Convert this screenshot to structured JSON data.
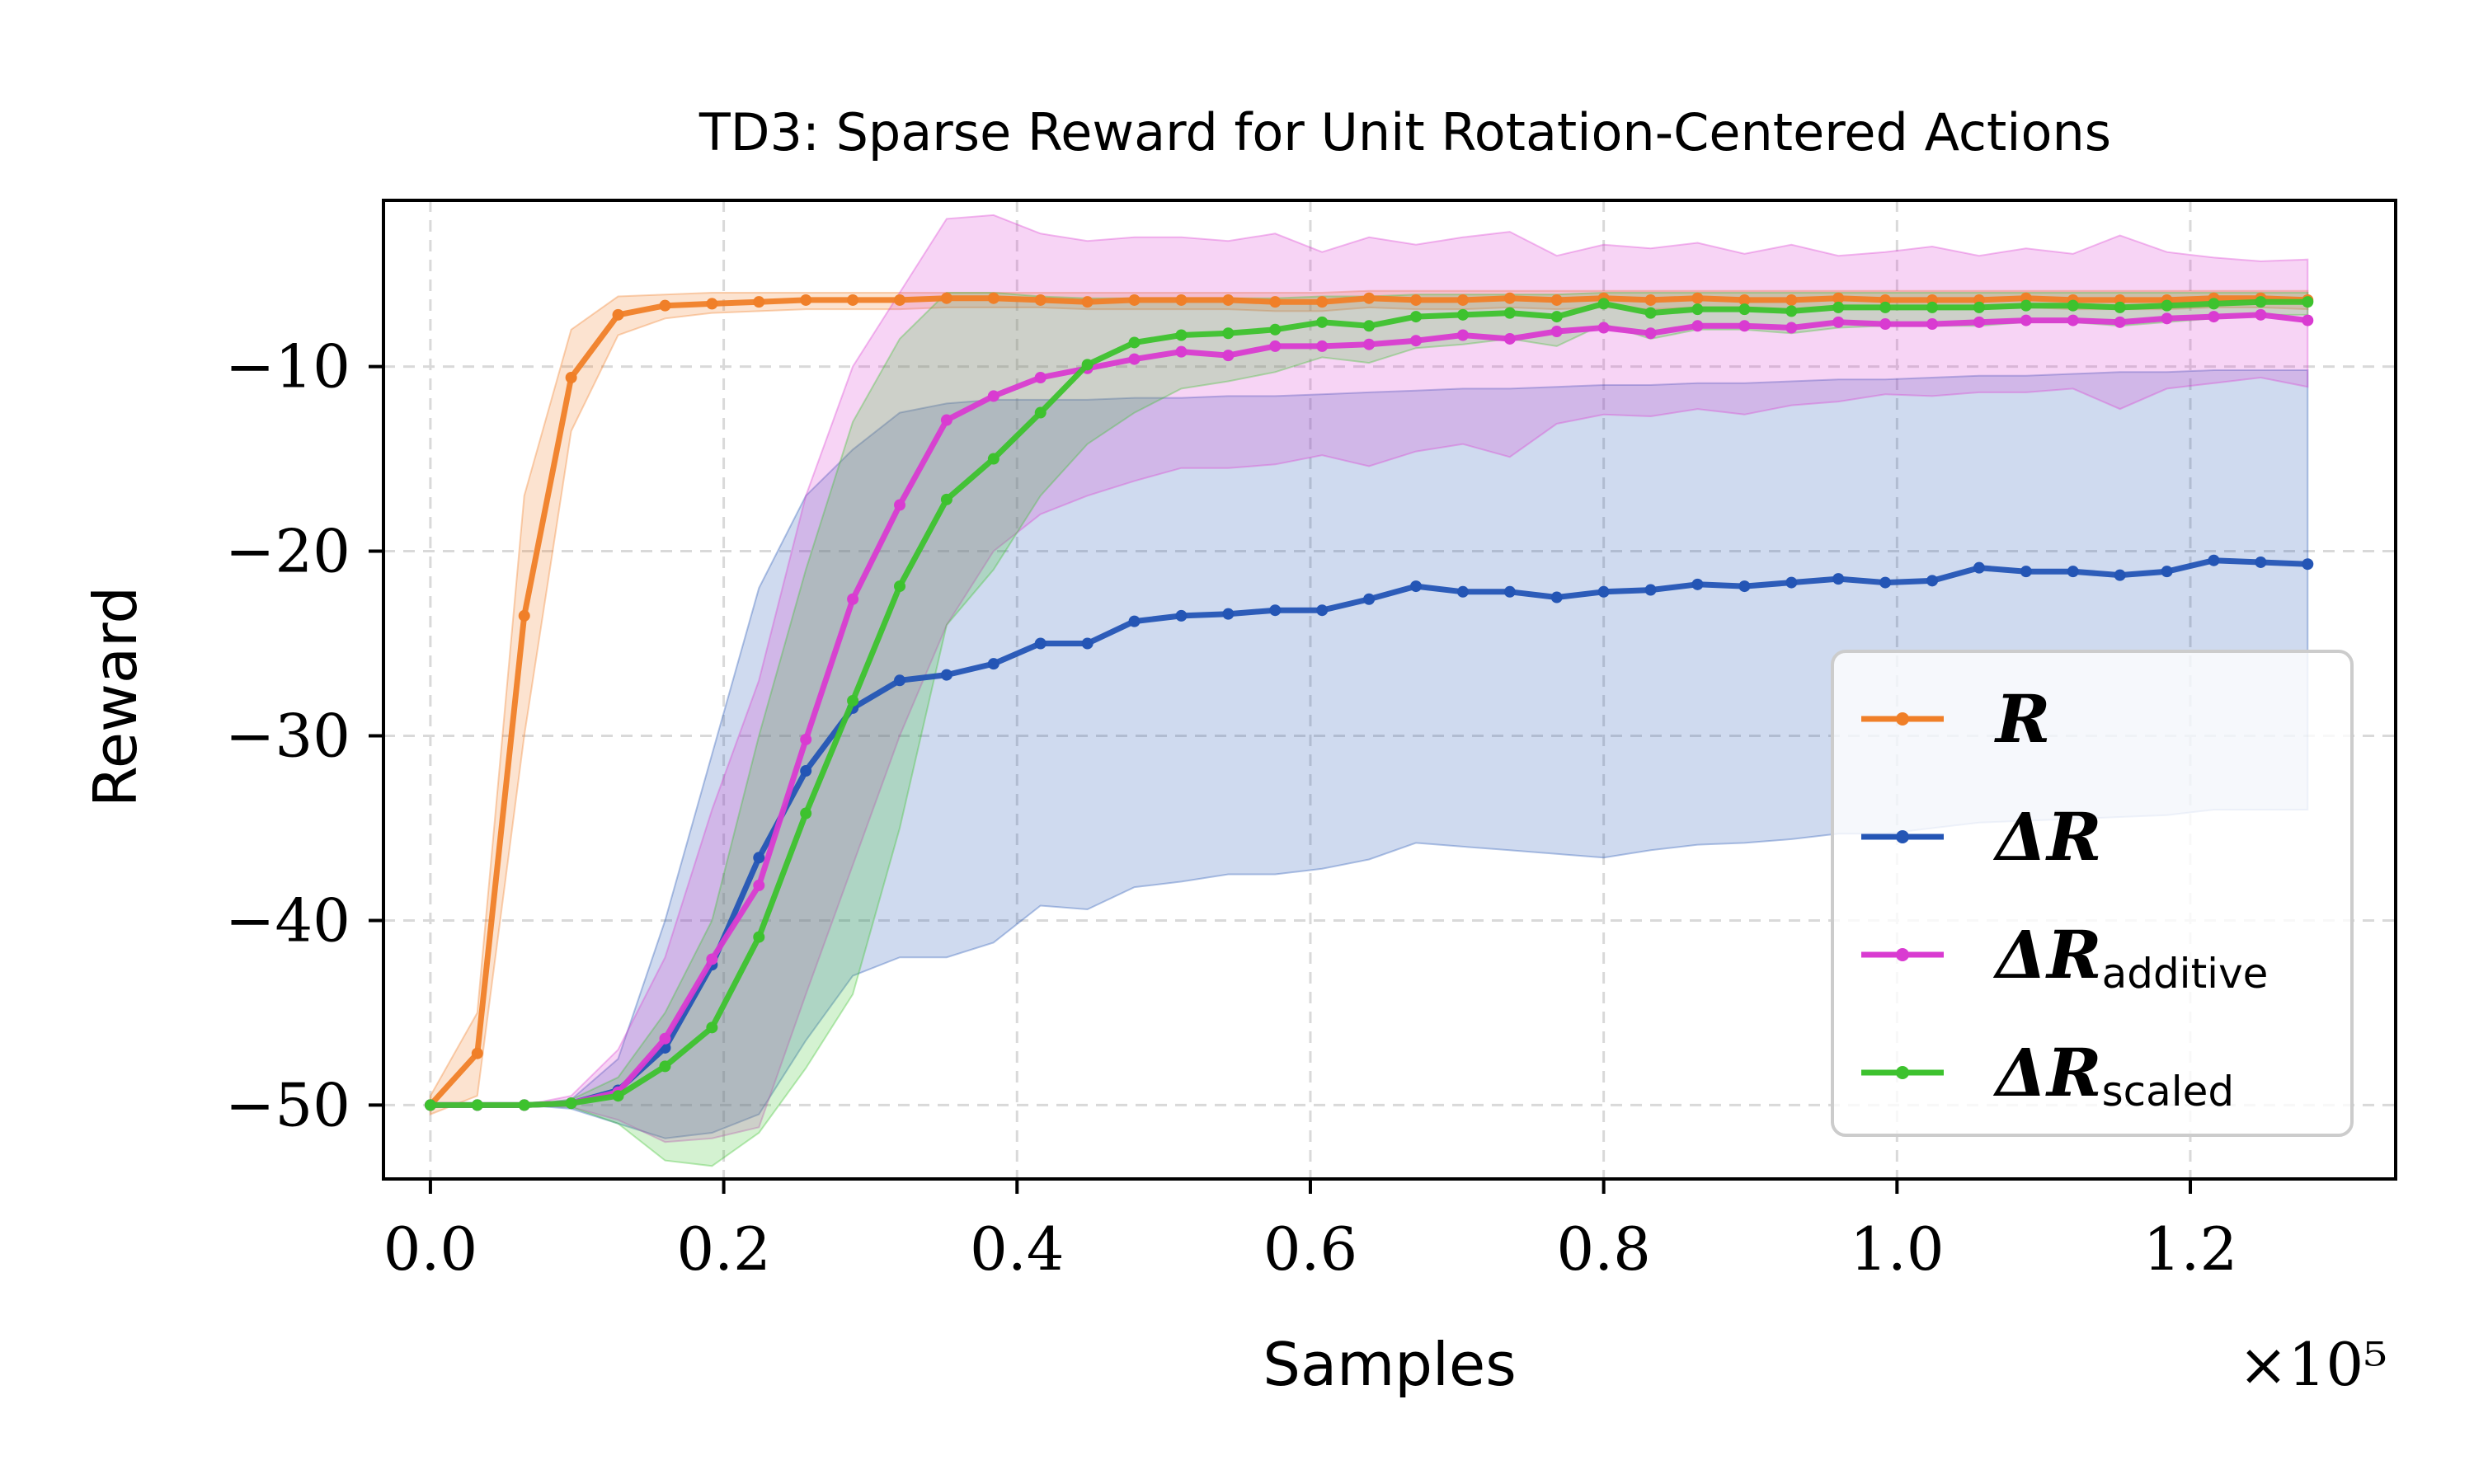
{
  "chart_data": {
    "type": "line",
    "title": "TD3: Sparse Reward for Unit Rotation-Centered Actions",
    "xlabel": "Samples",
    "ylabel": "Reward",
    "x_multiplier": "×10⁵",
    "xlim": [
      -0.032,
      1.34
    ],
    "ylim": [
      -54,
      -1
    ],
    "xticks": [
      0.0,
      0.2,
      0.4,
      0.6,
      0.8,
      1.0,
      1.2
    ],
    "xtick_labels": [
      "0.0",
      "0.2",
      "0.4",
      "0.6",
      "0.8",
      "1.0",
      "1.2"
    ],
    "yticks": [
      -10,
      -20,
      -30,
      -40,
      -50
    ],
    "ytick_labels": [
      "−10",
      "−20",
      "−30",
      "−40",
      "−50"
    ],
    "grid": true,
    "legend_position": "center-right",
    "x": [
      0,
      0.032,
      0.064,
      0.096,
      0.128,
      0.16,
      0.192,
      0.224,
      0.256,
      0.288,
      0.32,
      0.352,
      0.384,
      0.416,
      0.448,
      0.48,
      0.512,
      0.544,
      0.576,
      0.608,
      0.64,
      0.672,
      0.704,
      0.736,
      0.768,
      0.8,
      0.832,
      0.864,
      0.896,
      0.928,
      0.96,
      0.992,
      1.024,
      1.056,
      1.088,
      1.12,
      1.152,
      1.184,
      1.216,
      1.248,
      1.28
    ],
    "series": [
      {
        "name": "R",
        "label_main": "R",
        "label_sub": "",
        "color": "#f07f28",
        "values": [
          -50,
          -47.2,
          -23.5,
          -10.6,
          -7.2,
          -6.7,
          -6.6,
          -6.5,
          -6.4,
          -6.4,
          -6.4,
          -6.3,
          -6.3,
          -6.4,
          -6.5,
          -6.4,
          -6.4,
          -6.4,
          -6.5,
          -6.5,
          -6.3,
          -6.4,
          -6.4,
          -6.3,
          -6.4,
          -6.3,
          -6.4,
          -6.3,
          -6.4,
          -6.4,
          -6.3,
          -6.4,
          -6.4,
          -6.4,
          -6.3,
          -6.4,
          -6.4,
          -6.4,
          -6.3,
          -6.3,
          -6.4
        ],
        "upper": [
          -49.5,
          -45,
          -17,
          -8,
          -6.2,
          -6.1,
          -6.0,
          -6.0,
          -6.0,
          -6.0,
          -6.0,
          -6.0,
          -6.0,
          -6.0,
          -6.0,
          -6.0,
          -6.0,
          -6.0,
          -6.0,
          -6.0,
          -5.9,
          -5.9,
          -5.9,
          -5.9,
          -5.9,
          -5.9,
          -5.9,
          -5.9,
          -5.9,
          -5.9,
          -5.9,
          -5.9,
          -5.9,
          -5.9,
          -5.9,
          -5.9,
          -5.9,
          -5.9,
          -5.9,
          -5.9,
          -5.9
        ],
        "lower": [
          -50.5,
          -49.5,
          -30,
          -13.5,
          -8.3,
          -7.4,
          -7.1,
          -7.0,
          -6.9,
          -6.9,
          -6.9,
          -6.8,
          -6.8,
          -6.8,
          -6.9,
          -6.9,
          -6.9,
          -6.9,
          -7.0,
          -7.0,
          -6.8,
          -6.9,
          -6.9,
          -6.8,
          -6.9,
          -6.8,
          -6.9,
          -6.8,
          -6.9,
          -6.9,
          -6.8,
          -6.9,
          -6.9,
          -6.9,
          -6.8,
          -6.9,
          -6.9,
          -6.9,
          -6.8,
          -6.8,
          -6.9
        ]
      },
      {
        "name": "ΔR",
        "label_main": "ΔR",
        "label_sub": "",
        "color": "#2455b5",
        "values": [
          -50,
          -50,
          -50,
          -49.9,
          -49.2,
          -46.9,
          -42.4,
          -36.6,
          -31.9,
          -28.5,
          -27,
          -26.7,
          -26.1,
          -25,
          -25,
          -23.8,
          -23.5,
          -23.4,
          -23.2,
          -23.2,
          -22.6,
          -21.9,
          -22.2,
          -22.2,
          -22.5,
          -22.2,
          -22.1,
          -21.8,
          -21.9,
          -21.7,
          -21.5,
          -21.7,
          -21.6,
          -20.9,
          -21.1,
          -21.1,
          -21.3,
          -21.1,
          -20.5,
          -20.6,
          -20.7
        ],
        "upper": [
          -50,
          -50,
          -50,
          -49.7,
          -47.5,
          -40,
          -31,
          -22,
          -17,
          -14.5,
          -12.5,
          -12,
          -11.8,
          -11.8,
          -11.8,
          -11.7,
          -11.7,
          -11.6,
          -11.6,
          -11.5,
          -11.4,
          -11.3,
          -11.2,
          -11.2,
          -11.1,
          -11.0,
          -11.0,
          -10.9,
          -10.9,
          -10.8,
          -10.7,
          -10.7,
          -10.6,
          -10.5,
          -10.5,
          -10.4,
          -10.3,
          -10.3,
          -10.2,
          -10.2,
          -10.2
        ],
        "lower": [
          -50,
          -50,
          -50,
          -50.2,
          -51,
          -51.8,
          -51.5,
          -50.5,
          -46.5,
          -43,
          -42,
          -42,
          -41.2,
          -39.2,
          -39.4,
          -38.2,
          -37.9,
          -37.5,
          -37.5,
          -37.2,
          -36.7,
          -35.8,
          -36,
          -36.2,
          -36.4,
          -36.6,
          -36.2,
          -35.9,
          -35.8,
          -35.6,
          -35.3,
          -35.3,
          -35,
          -34.7,
          -34.6,
          -34.5,
          -34.4,
          -34.3,
          -34,
          -34,
          -34
        ]
      },
      {
        "name": "ΔR additive",
        "label_main": "ΔR",
        "label_sub": "additive",
        "color": "#d93bd1",
        "values": [
          -50,
          -50,
          -50,
          -49.9,
          -49.3,
          -46.4,
          -42.1,
          -38.1,
          -30.2,
          -22.6,
          -17.5,
          -12.9,
          -11.6,
          -10.6,
          -10.1,
          -9.6,
          -9.2,
          -9.4,
          -8.9,
          -8.9,
          -8.8,
          -8.6,
          -8.3,
          -8.5,
          -8.1,
          -7.9,
          -8.2,
          -7.8,
          -7.8,
          -7.9,
          -7.6,
          -7.7,
          -7.7,
          -7.6,
          -7.5,
          -7.5,
          -7.6,
          -7.4,
          -7.3,
          -7.2,
          -7.5
        ],
        "upper": [
          -50,
          -50,
          -50,
          -49.5,
          -47,
          -42,
          -34,
          -27,
          -17,
          -10,
          -6,
          -2,
          -1.8,
          -2.8,
          -3.2,
          -3.0,
          -3.0,
          -3.2,
          -2.8,
          -3.8,
          -3.0,
          -3.4,
          -3.0,
          -2.7,
          -4.0,
          -3.4,
          -3.6,
          -3.3,
          -3.9,
          -3.4,
          -4.0,
          -3.8,
          -3.5,
          -4.0,
          -3.6,
          -3.9,
          -2.9,
          -3.8,
          -4.1,
          -4.3,
          -4.2
        ],
        "lower": [
          -50,
          -50,
          -50,
          -50.1,
          -50.8,
          -52,
          -51.8,
          -51.2,
          -44,
          -37,
          -30,
          -24,
          -20,
          -18,
          -17,
          -16.2,
          -15.5,
          -15.5,
          -15.3,
          -14.8,
          -15.4,
          -14.6,
          -14.2,
          -14.9,
          -13.1,
          -12.6,
          -12.7,
          -12.3,
          -12.6,
          -12.1,
          -11.9,
          -11.5,
          -11.6,
          -11.4,
          -11.4,
          -11.2,
          -12.3,
          -11.2,
          -10.9,
          -10.6,
          -11.1
        ]
      },
      {
        "name": "ΔR scaled",
        "label_main": "ΔR",
        "label_sub": "scaled",
        "color": "#3dc22e",
        "values": [
          -50,
          -50,
          -50,
          -49.9,
          -49.5,
          -47.9,
          -45.8,
          -40.9,
          -34.2,
          -28.1,
          -21.9,
          -17.2,
          -15,
          -12.5,
          -9.9,
          -8.7,
          -8.3,
          -8.2,
          -8,
          -7.6,
          -7.8,
          -7.3,
          -7.2,
          -7.1,
          -7.3,
          -6.6,
          -7.1,
          -6.9,
          -6.9,
          -7,
          -6.8,
          -6.8,
          -6.8,
          -6.8,
          -6.7,
          -6.7,
          -6.8,
          -6.7,
          -6.6,
          -6.5,
          -6.5
        ],
        "upper": [
          -50,
          -50,
          -50,
          -49.7,
          -48.5,
          -45,
          -40,
          -30,
          -21,
          -13,
          -8.5,
          -6,
          -6,
          -6.2,
          -6.3,
          -6.3,
          -6.3,
          -6.3,
          -6.3,
          -6.2,
          -6.2,
          -6.1,
          -6.1,
          -6.1,
          -6.1,
          -6.0,
          -6.0,
          -6.0,
          -6.0,
          -6.0,
          -6.0,
          -6.0,
          -6.0,
          -6.0,
          -6.0,
          -6.0,
          -6.0,
          -6.0,
          -6.0,
          -6.0,
          -6.0
        ],
        "lower": [
          -50,
          -50,
          -50,
          -50.1,
          -51,
          -53,
          -53.3,
          -51.5,
          -48,
          -44,
          -35,
          -24,
          -21,
          -17,
          -14.2,
          -12.5,
          -11.2,
          -10.8,
          -10.3,
          -9.5,
          -9.8,
          -9,
          -8.8,
          -8.5,
          -8.9,
          -7.7,
          -8.5,
          -8,
          -8,
          -8.2,
          -7.9,
          -7.8,
          -7.8,
          -7.8,
          -7.6,
          -7.6,
          -7.8,
          -7.6,
          -7.4,
          -7.2,
          -7.2
        ]
      }
    ]
  }
}
